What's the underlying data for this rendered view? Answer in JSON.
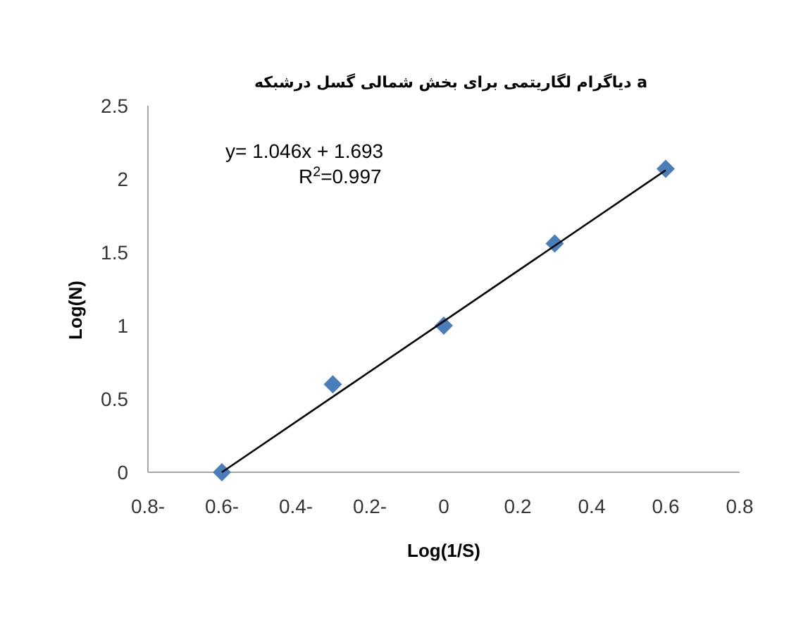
{
  "chart_data": {
    "type": "scatter",
    "title": "دیاگرام لگاریتمی برای بخش شمالی گسل درشبکه a",
    "xlabel": "Log(1/S)",
    "ylabel": "Log(N)",
    "x": [
      -0.6,
      -0.3,
      0,
      0.3,
      0.6
    ],
    "series": [
      {
        "color": "#4a7ebb",
        "values": [
          0,
          0.6,
          1.0,
          1.56,
          2.07
        ],
        "marker": "diamond"
      },
      {
        "type": "line",
        "color": "#000000",
        "x": [
          -0.6,
          0.6
        ],
        "values": [
          0.0,
          2.06
        ],
        "line_style": "solid"
      }
    ],
    "xlim": [
      -0.8,
      0.8
    ],
    "xticks": [
      {
        "value": -0.8,
        "label": "0.8-"
      },
      {
        "value": -0.6,
        "label": "0.6-"
      },
      {
        "value": -0.4,
        "label": "0.4-"
      },
      {
        "value": -0.2,
        "label": "0.2-"
      },
      0,
      0.2,
      0.4,
      0.6,
      0.8
    ],
    "ylim": [
      0,
      2.5
    ],
    "yticks": [
      0,
      0.5,
      1,
      1.5,
      2,
      2.5
    ],
    "annotations": [
      "y= 1.046x + 1.693",
      "R$^{2}$=0.997"
    ],
    "grid": false
  }
}
